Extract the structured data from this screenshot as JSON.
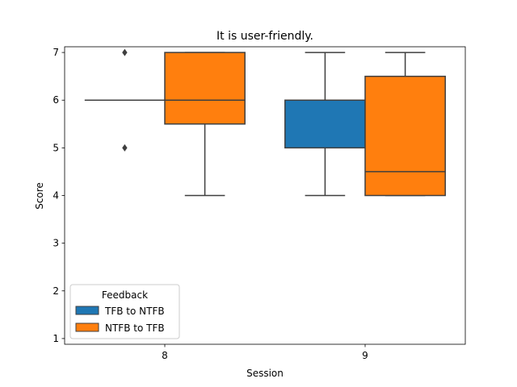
{
  "chart_data": {
    "type": "box",
    "title": "It is user-friendly.",
    "xlabel": "Session",
    "ylabel": "Score",
    "categories": [
      "8",
      "9"
    ],
    "ylim": [
      0.88,
      7.12
    ],
    "yticks": [
      1,
      2,
      3,
      4,
      5,
      6,
      7
    ],
    "legend": {
      "title": "Feedback",
      "placement": "lower-left"
    },
    "series": [
      {
        "name": "TFB to NTFB",
        "color": "#1f77b4",
        "boxes": [
          {
            "category": "8",
            "whislo": 6,
            "q1": 6,
            "med": 6,
            "q3": 6,
            "whishi": 6,
            "fliers": [
              7,
              5
            ]
          },
          {
            "category": "9",
            "whislo": 4,
            "q1": 5,
            "med": 6,
            "q3": 6,
            "whishi": 7,
            "fliers": []
          }
        ]
      },
      {
        "name": "NTFB to TFB",
        "color": "#ff7f0e",
        "boxes": [
          {
            "category": "8",
            "whislo": 4,
            "q1": 5.5,
            "med": 6,
            "q3": 7,
            "whishi": 7,
            "fliers": []
          },
          {
            "category": "9",
            "whislo": 4,
            "q1": 4,
            "med": 4.5,
            "q3": 6.5,
            "whishi": 7,
            "fliers": []
          }
        ]
      }
    ]
  }
}
